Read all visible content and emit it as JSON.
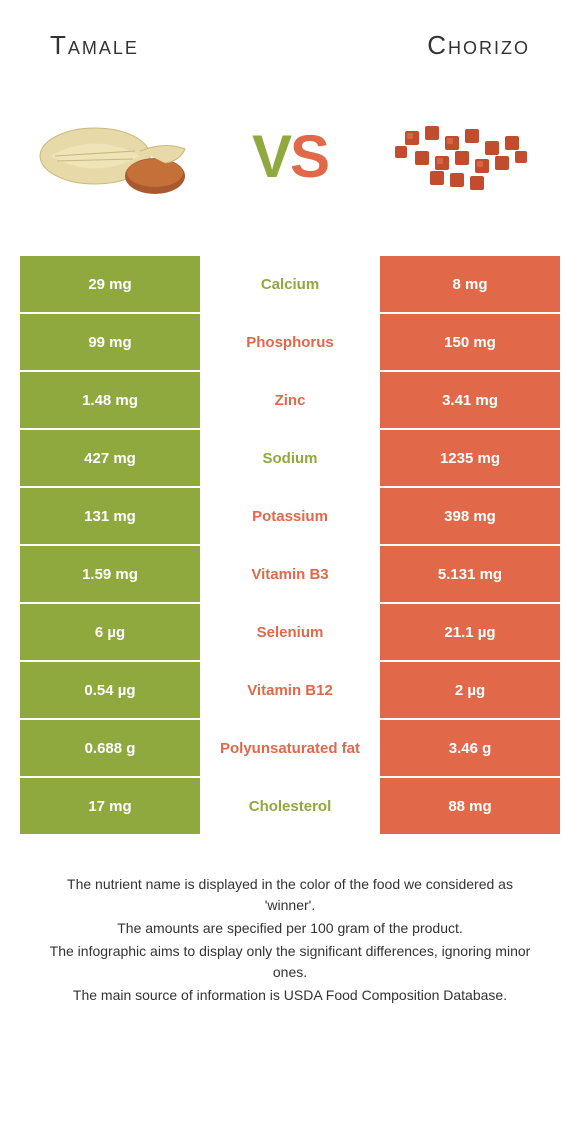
{
  "colors": {
    "left": "#8fa93e",
    "right": "#e2684a",
    "white": "#ffffff"
  },
  "header": {
    "left_title": "Tamale",
    "right_title": "Chorizo"
  },
  "vs": {
    "v": "V",
    "s": "S"
  },
  "rows": [
    {
      "left": "29 mg",
      "label": "Calcium",
      "right": "8 mg",
      "winner": "left"
    },
    {
      "left": "99 mg",
      "label": "Phosphorus",
      "right": "150 mg",
      "winner": "right"
    },
    {
      "left": "1.48 mg",
      "label": "Zinc",
      "right": "3.41 mg",
      "winner": "right"
    },
    {
      "left": "427 mg",
      "label": "Sodium",
      "right": "1235 mg",
      "winner": "left"
    },
    {
      "left": "131 mg",
      "label": "Potassium",
      "right": "398 mg",
      "winner": "right"
    },
    {
      "left": "1.59 mg",
      "label": "Vitamin B3",
      "right": "5.131 mg",
      "winner": "right"
    },
    {
      "left": "6 µg",
      "label": "Selenium",
      "right": "21.1 µg",
      "winner": "right"
    },
    {
      "left": "0.54 µg",
      "label": "Vitamin B12",
      "right": "2 µg",
      "winner": "right"
    },
    {
      "left": "0.688 g",
      "label": "Polyunsaturated fat",
      "right": "3.46 g",
      "winner": "right"
    },
    {
      "left": "17 mg",
      "label": "Cholesterol",
      "right": "88 mg",
      "winner": "left"
    }
  ],
  "footer": {
    "line1": "The nutrient name is displayed in the color of the food we considered as 'winner'.",
    "line2": "The amounts are specified per 100 gram of the product.",
    "line3": "The infographic aims to display only the significant differences, ignoring minor ones.",
    "line4": "The main source of information is USDA Food Composition Database."
  }
}
